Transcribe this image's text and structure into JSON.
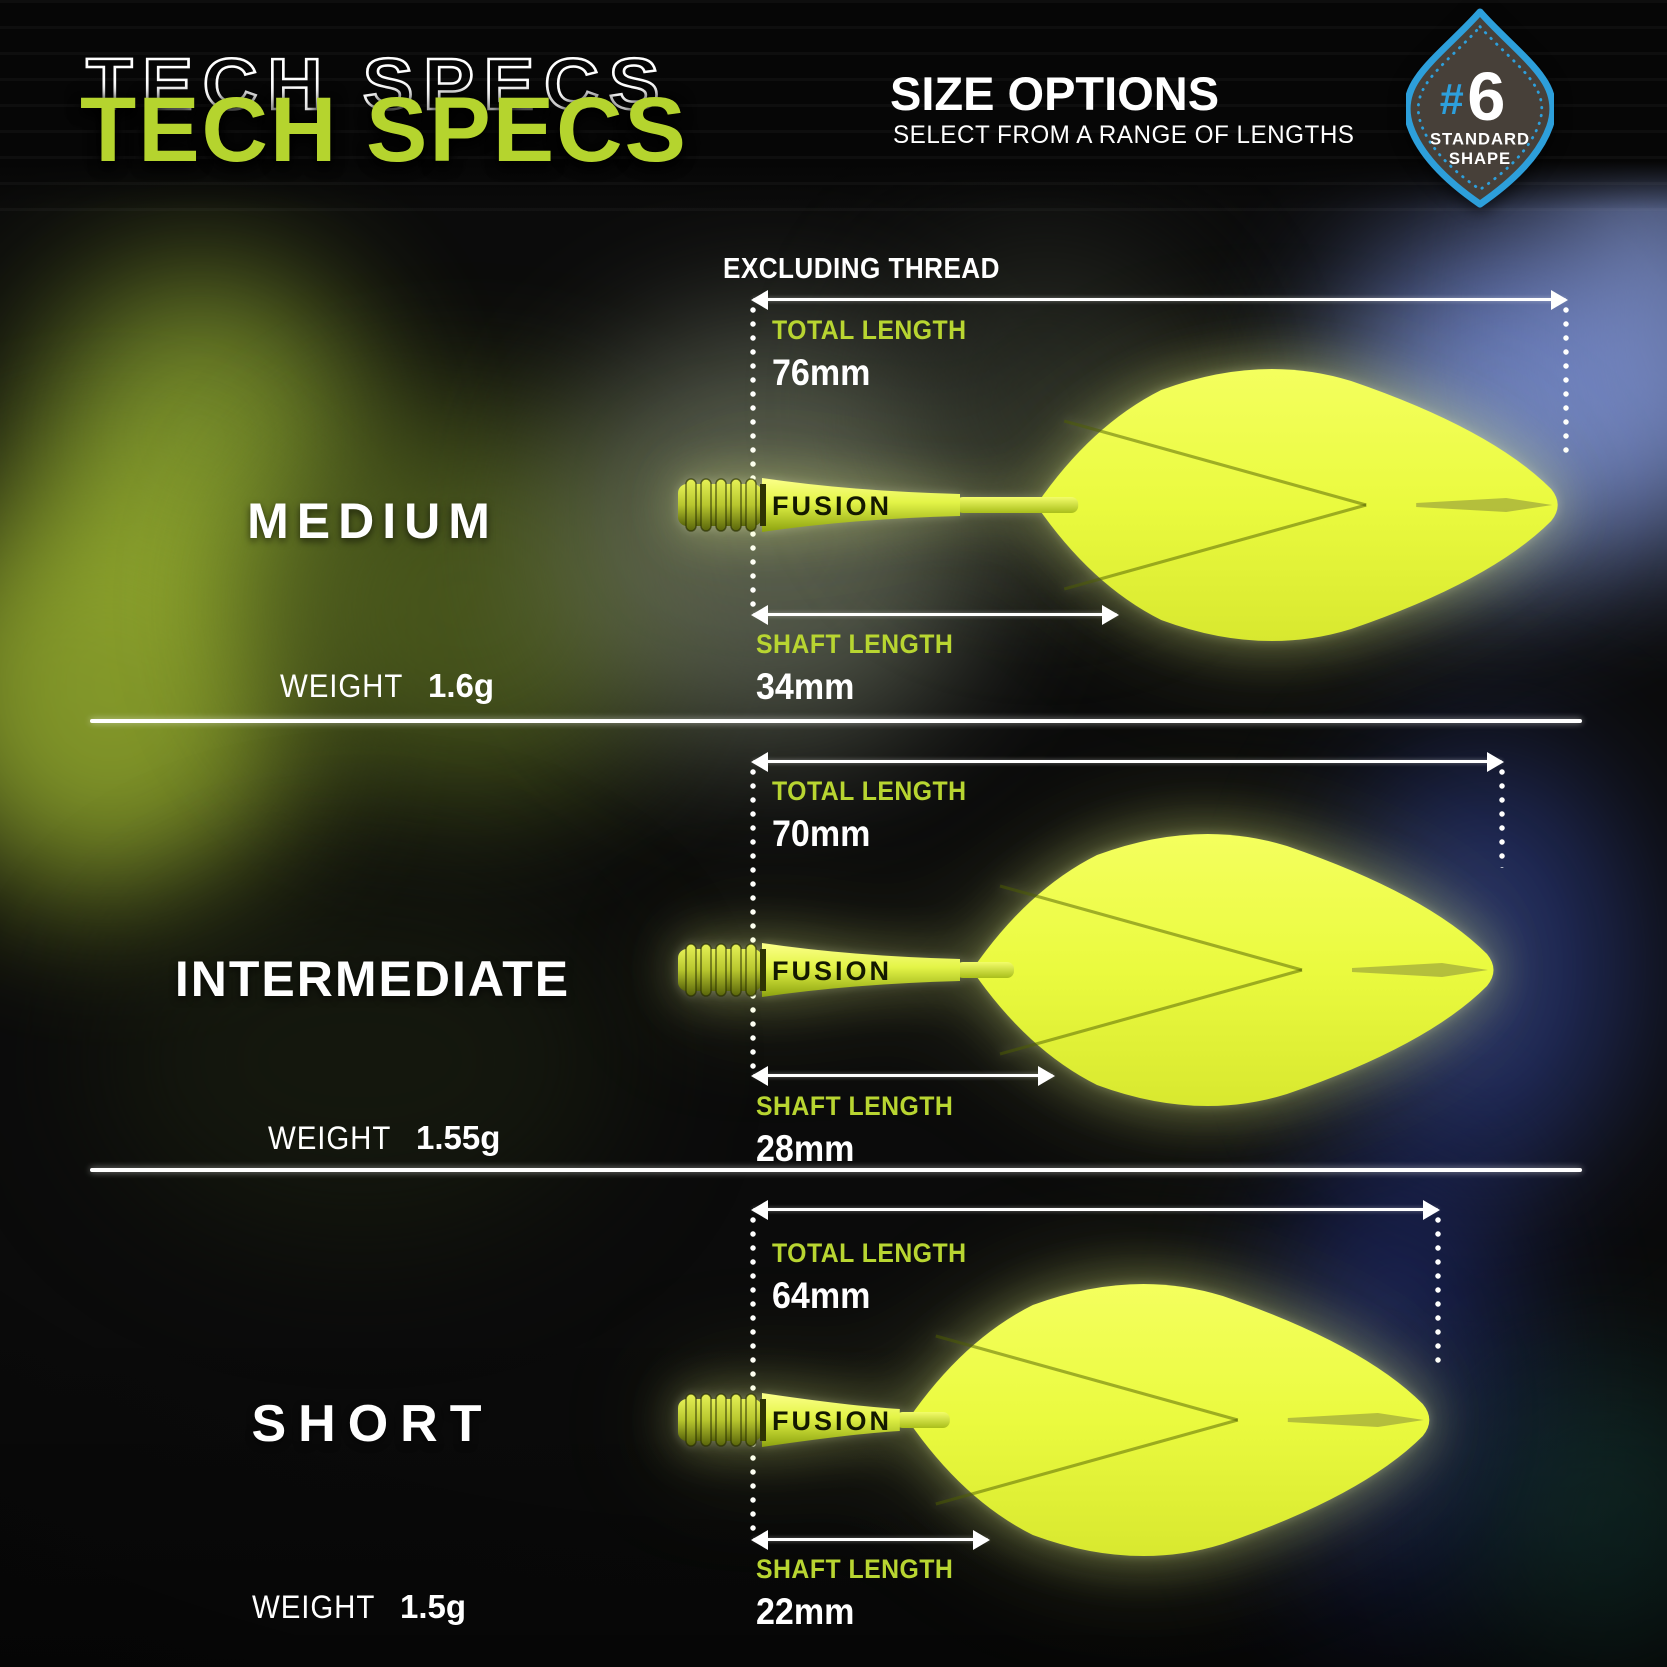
{
  "header": {
    "title": "TECH SPECS",
    "size_options_title": "SIZE OPTIONS",
    "size_options_subtitle": "SELECT FROM A RANGE OF LENGTHS",
    "badge": {
      "hash": "#",
      "number": "6",
      "line1": "STANDARD",
      "line2": "SHAPE"
    }
  },
  "labels": {
    "excluding_thread": "EXCLUDING THREAD",
    "total_length": "TOTAL LENGTH",
    "shaft_length": "SHAFT LENGTH",
    "weight": "WEIGHT"
  },
  "brand": "FUSION",
  "sizes": [
    {
      "name": "MEDIUM",
      "total_length": "76mm",
      "shaft_length": "34mm",
      "weight": "1.6g",
      "total_mm": 76,
      "shaft_mm": 34
    },
    {
      "name": "INTERMEDIATE",
      "total_length": "70mm",
      "shaft_length": "28mm",
      "weight": "1.55g",
      "total_mm": 70,
      "shaft_mm": 28
    },
    {
      "name": "SHORT",
      "total_length": "64mm",
      "shaft_length": "22mm",
      "weight": "1.5g",
      "total_mm": 64,
      "shaft_mm": 22
    }
  ],
  "colors": {
    "accent_green": "#b8d531",
    "dart_yellow": "#eafa3f",
    "badge_blue": "#2d9fdb",
    "text_white": "#ffffff"
  }
}
